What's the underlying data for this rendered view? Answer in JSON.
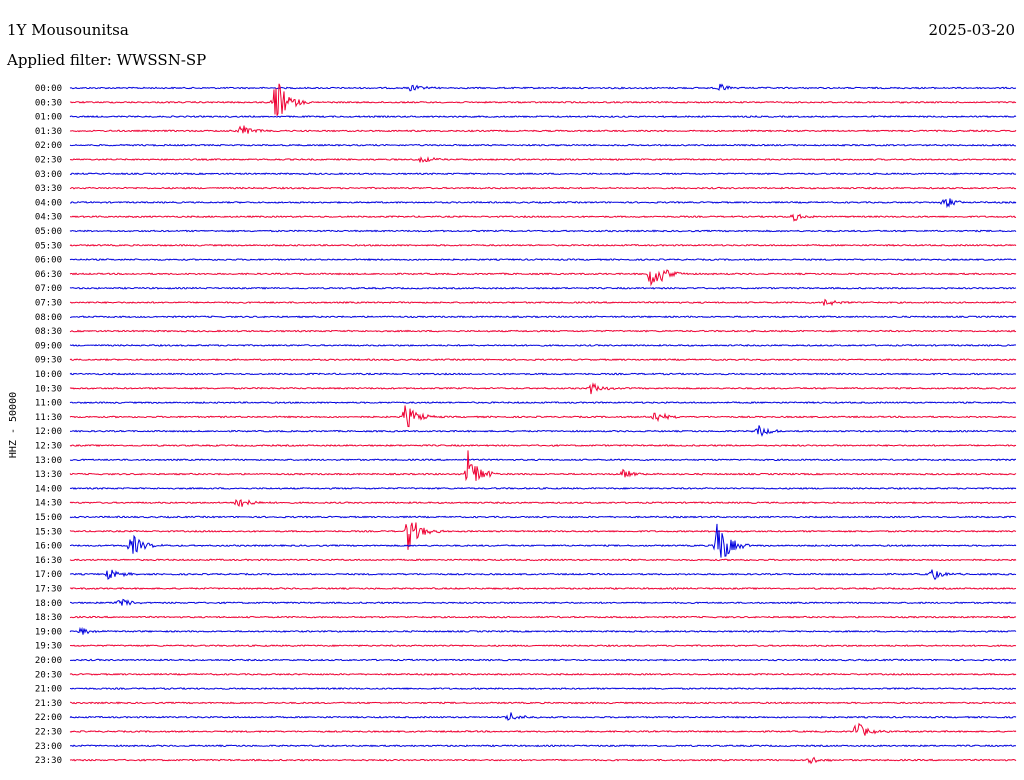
{
  "header": {
    "station": "1Y Mousounitsa",
    "date": "2025-03-20",
    "filter": "Applied filter: WWSSN-SP"
  },
  "chart_data": {
    "type": "line",
    "title": "1Y Mousounitsa",
    "date": "2025-03-20",
    "filter": "WWSSN-SP",
    "ylabel": "HHZ - 50000",
    "colors": {
      "odd": "#0000dd",
      "even": "#ee0033"
    },
    "rows": [
      "00:00",
      "00:30",
      "01:00",
      "01:30",
      "02:00",
      "02:30",
      "03:00",
      "03:30",
      "04:00",
      "04:30",
      "05:00",
      "05:30",
      "06:00",
      "06:30",
      "07:00",
      "07:30",
      "08:00",
      "08:30",
      "09:00",
      "09:30",
      "10:00",
      "10:30",
      "11:00",
      "11:30",
      "12:00",
      "12:30",
      "13:00",
      "13:30",
      "14:00",
      "14:30",
      "15:00",
      "15:30",
      "16:00",
      "16:30",
      "17:00",
      "17:30",
      "18:00",
      "18:30",
      "19:00",
      "19:30",
      "20:00",
      "20:30",
      "21:00",
      "21:30",
      "22:00",
      "22:30",
      "23:00",
      "23:30"
    ],
    "x_range_minutes": [
      0,
      30
    ],
    "events": [
      {
        "row": "00:00",
        "minute": 10.8,
        "amplitude": 0.3
      },
      {
        "row": "00:00",
        "minute": 20.6,
        "amplitude": 0.35
      },
      {
        "row": "00:30",
        "minute": 6.5,
        "amplitude": 2.0
      },
      {
        "row": "01:30",
        "minute": 5.4,
        "amplitude": 0.6
      },
      {
        "row": "02:30",
        "minute": 11.1,
        "amplitude": 0.3
      },
      {
        "row": "04:00",
        "minute": 27.7,
        "amplitude": 0.5
      },
      {
        "row": "04:30",
        "minute": 22.9,
        "amplitude": 0.35
      },
      {
        "row": "06:30",
        "minute": 18.4,
        "amplitude": 1.6
      },
      {
        "row": "07:30",
        "minute": 23.9,
        "amplitude": 0.4
      },
      {
        "row": "10:30",
        "minute": 16.5,
        "amplitude": 0.5
      },
      {
        "row": "11:30",
        "minute": 10.6,
        "amplitude": 1.1
      },
      {
        "row": "11:30",
        "minute": 18.5,
        "amplitude": 0.5
      },
      {
        "row": "12:00",
        "minute": 21.8,
        "amplitude": 0.5
      },
      {
        "row": "13:30",
        "minute": 12.6,
        "amplitude": 1.8
      },
      {
        "row": "13:30",
        "minute": 17.5,
        "amplitude": 0.4
      },
      {
        "row": "14:30",
        "minute": 5.3,
        "amplitude": 0.6
      },
      {
        "row": "15:30",
        "minute": 10.7,
        "amplitude": 1.5
      },
      {
        "row": "16:00",
        "minute": 1.9,
        "amplitude": 1.0
      },
      {
        "row": "16:00",
        "minute": 20.5,
        "amplitude": 2.2
      },
      {
        "row": "17:00",
        "minute": 1.2,
        "amplitude": 0.5
      },
      {
        "row": "17:00",
        "minute": 27.3,
        "amplitude": 0.5
      },
      {
        "row": "18:00",
        "minute": 1.5,
        "amplitude": 0.4
      },
      {
        "row": "19:00",
        "minute": 0.3,
        "amplitude": 0.3
      },
      {
        "row": "22:00",
        "minute": 13.9,
        "amplitude": 0.4
      },
      {
        "row": "22:30",
        "minute": 24.9,
        "amplitude": 0.8
      },
      {
        "row": "23:30",
        "minute": 23.4,
        "amplitude": 0.35
      }
    ]
  }
}
